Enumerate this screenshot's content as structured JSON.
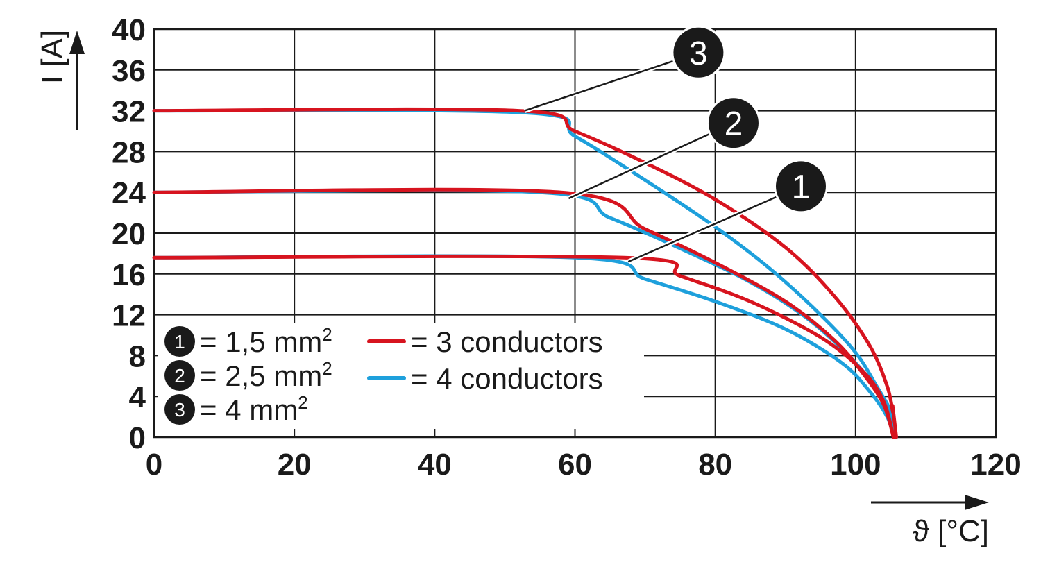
{
  "chart_data": {
    "type": "line",
    "xlabel": "ϑ [°C]",
    "ylabel": "I [A]",
    "xlim": [
      0,
      120
    ],
    "ylim": [
      0,
      40
    ],
    "xticks": [
      "0",
      "20",
      "40",
      "60",
      "80",
      "100",
      "120"
    ],
    "yticks": [
      "0",
      "4",
      "8",
      "12",
      "16",
      "20",
      "24",
      "28",
      "32",
      "36",
      "40"
    ],
    "grid": true,
    "colors": {
      "three_conductors": "#d7141f",
      "four_conductors": "#1ea0dc"
    },
    "series": [
      {
        "group": "1",
        "conductors": "3",
        "points": [
          [
            0,
            17.6
          ],
          [
            67,
            17.6
          ],
          [
            75,
            15.8
          ],
          [
            85,
            13.3
          ],
          [
            95,
            9.8
          ],
          [
            101,
            6.5
          ],
          [
            104,
            3.5
          ],
          [
            105.4,
            0
          ]
        ]
      },
      {
        "group": "1",
        "conductors": "4",
        "points": [
          [
            0,
            17.6
          ],
          [
            60,
            17.6
          ],
          [
            70,
            15.5
          ],
          [
            80,
            13.3
          ],
          [
            90,
            10.6
          ],
          [
            98,
            7.3
          ],
          [
            102,
            4.5
          ],
          [
            104.5,
            2
          ],
          [
            105.5,
            0
          ]
        ]
      },
      {
        "group": "2",
        "conductors": "3",
        "points": [
          [
            0,
            24
          ],
          [
            58,
            24
          ],
          [
            70,
            20.4
          ],
          [
            80,
            17.1
          ],
          [
            90,
            13.3
          ],
          [
            97,
            9.5
          ],
          [
            101,
            6.3
          ],
          [
            104,
            3.2
          ],
          [
            105.4,
            0
          ]
        ]
      },
      {
        "group": "2",
        "conductors": "4",
        "points": [
          [
            0,
            24
          ],
          [
            55,
            24
          ],
          [
            65,
            21.5
          ],
          [
            75,
            18.5
          ],
          [
            85,
            15.2
          ],
          [
            93,
            11.7
          ],
          [
            99,
            8
          ],
          [
            103,
            4.8
          ],
          [
            105,
            2.5
          ],
          [
            105.6,
            0
          ]
        ]
      },
      {
        "group": "3",
        "conductors": "3",
        "points": [
          [
            0,
            32
          ],
          [
            52,
            32
          ],
          [
            60,
            30
          ],
          [
            70,
            26.9
          ],
          [
            80,
            23.3
          ],
          [
            90,
            18.6
          ],
          [
            97,
            13.8
          ],
          [
            102,
            9
          ],
          [
            104.5,
            5
          ],
          [
            105.3,
            2.5
          ],
          [
            105.3,
            3
          ],
          [
            105.8,
            0
          ]
        ]
      },
      {
        "group": "3",
        "conductors": "4",
        "points": [
          [
            0,
            32
          ],
          [
            53,
            31.8
          ],
          [
            60,
            29.5
          ],
          [
            70,
            25.2
          ],
          [
            80,
            20.6
          ],
          [
            88,
            16.4
          ],
          [
            95,
            12
          ],
          [
            100,
            8.3
          ],
          [
            103,
            5
          ],
          [
            105,
            2.5
          ],
          [
            105.8,
            0
          ]
        ]
      }
    ],
    "callouts": [
      {
        "label": "3",
        "curve_point": [
          52.8,
          32
        ],
        "circle_center": [
          77.6,
          37.7
        ]
      },
      {
        "label": "2",
        "curve_point": [
          59.1,
          23.4
        ],
        "circle_center": [
          82.6,
          30.8
        ]
      },
      {
        "label": "1",
        "curve_point": [
          67.6,
          17.2
        ],
        "circle_center": [
          92.2,
          24.6
        ]
      }
    ],
    "legend": {
      "position": "bottom-left",
      "cross_sections": [
        {
          "marker": "1",
          "text": "= 1,5 mm",
          "sup": "2"
        },
        {
          "marker": "2",
          "text": "= 2,5 mm",
          "sup": "2"
        },
        {
          "marker": "3",
          "text": "= 4 mm",
          "sup": "2"
        }
      ],
      "conductors": [
        {
          "key": "three_conductors",
          "text": "= 3 conductors"
        },
        {
          "key": "four_conductors",
          "text": "= 4 conductors"
        }
      ]
    }
  }
}
